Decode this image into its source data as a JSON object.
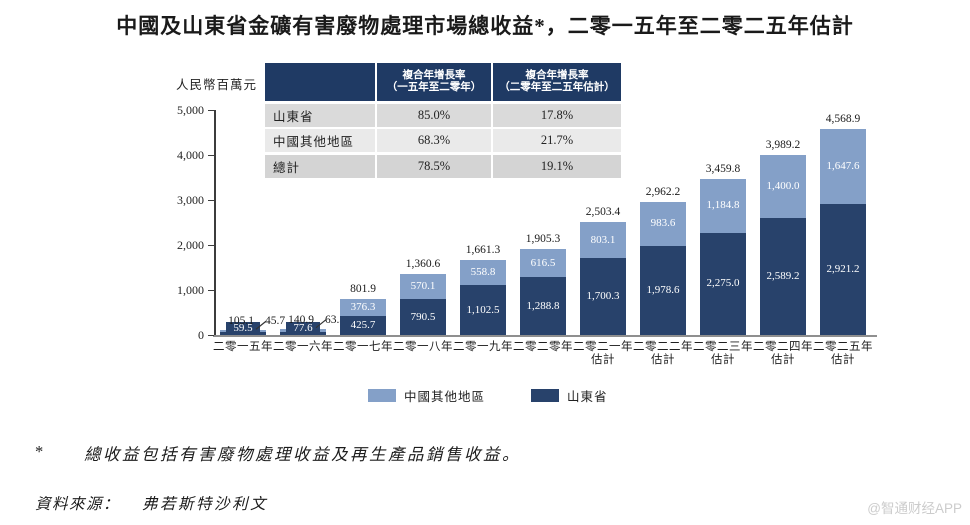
{
  "title": "中國及山東省金礦有害廢物處理市場總收益*，二零一五年至二零二五年估計",
  "cagr_table": {
    "col_headers": [
      {
        "line1": "複合年增長率",
        "line2": "（一五年至二零年）"
      },
      {
        "line1": "複合年增長率",
        "line2": "（二零年至二五年估計）"
      }
    ],
    "rows": [
      {
        "label": "山東省",
        "v1": "85.0%",
        "v2": "17.8%"
      },
      {
        "label": "中國其他地區",
        "v1": "68.3%",
        "v2": "21.7%"
      },
      {
        "label": "總計",
        "v1": "78.5%",
        "v2": "19.1%"
      }
    ]
  },
  "chart_data": {
    "type": "bar",
    "stacked": true,
    "title": "中國及山東省金礦有害廢物處理市場總收益，二零一五年至二零二五年估計",
    "ylabel": "人民幣百萬元",
    "ylim": [
      0,
      5000
    ],
    "yticks": [
      "0",
      "1,000",
      "2,000",
      "3,000",
      "4,000",
      "5,000"
    ],
    "grid": false,
    "legend_position": "bottom",
    "categories": [
      "二零一五年",
      "二零一六年",
      "二零一七年",
      "二零一八年",
      "二零一九年",
      "二零二零年",
      "二零二一年\n估計",
      "二零二二年\n估計",
      "二零二三年\n估計",
      "二零二四年\n估計",
      "二零二五年\n估計"
    ],
    "series": [
      {
        "name": "山東省",
        "color": "#28426b",
        "values": [
          59.5,
          77.6,
          425.7,
          790.5,
          1102.5,
          1288.8,
          1700.3,
          1978.6,
          2275.0,
          2589.2,
          2921.2
        ]
      },
      {
        "name": "中國其他地區",
        "color": "#84a0c8",
        "values": [
          45.7,
          63.3,
          376.3,
          570.1,
          558.8,
          616.5,
          803.1,
          983.6,
          1184.8,
          1400.0,
          1647.6
        ]
      }
    ],
    "totals": [
      105.1,
      140.9,
      801.9,
      1360.6,
      1661.3,
      1905.3,
      2503.4,
      2962.2,
      3459.8,
      3989.2,
      4568.9
    ]
  },
  "legend": [
    {
      "label": "中國其他地區",
      "color": "#84a0c8"
    },
    {
      "label": "山東省",
      "color": "#28426b"
    }
  ],
  "footnote": {
    "marker": "*",
    "text": "總收益包括有害廢物處理收益及再生產品銷售收益。"
  },
  "source": {
    "label": "資料來源：",
    "value": "弗若斯特沙利文"
  },
  "watermark": "@智通财经APP"
}
